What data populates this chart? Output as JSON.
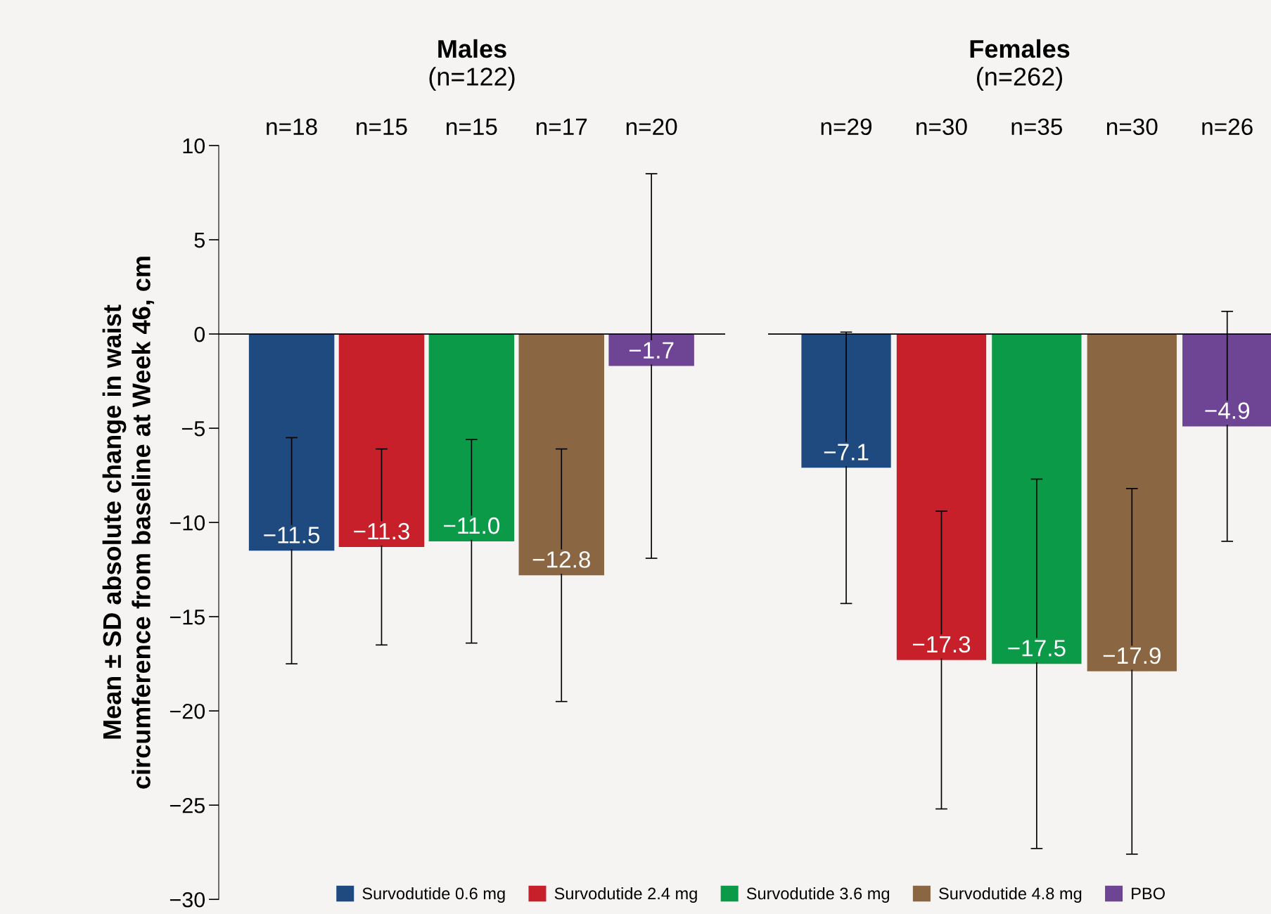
{
  "chart_data": [
    {
      "type": "bar",
      "title": "Males",
      "subtitle": "(n=122)",
      "ylabel": "Mean ± SD absolute change in waist\ncircumference from baseline at Week 46, cm",
      "categories": [
        "n=18",
        "n=15",
        "n=15",
        "n=17",
        "n=20"
      ],
      "ylim": [
        -30,
        10
      ],
      "yticks": [
        {
          "value": 10,
          "label": "10"
        },
        {
          "value": 5,
          "label": "5"
        },
        {
          "value": 0,
          "label": "0"
        },
        {
          "value": -5,
          "label": "−5"
        },
        {
          "value": -10,
          "label": "−10"
        },
        {
          "value": -15,
          "label": "−15"
        },
        {
          "value": -20,
          "label": "−20"
        },
        {
          "value": -25,
          "label": "−25"
        },
        {
          "value": -30,
          "label": "−30"
        }
      ],
      "legend": "bottom",
      "tick_labels": "y",
      "series": [
        {
          "name": "Survodutide 0.6 mg",
          "color": "#1f4a80",
          "values": [
            -11.5,
            null,
            null,
            null,
            null
          ],
          "errors": [
            [
              -17.5,
              -5.5
            ],
            null,
            null,
            null,
            null
          ],
          "value_labels": [
            "−11.5",
            null,
            null,
            null,
            null
          ]
        },
        {
          "name": "Survodutide 2.4 mg",
          "color": "#c8202b",
          "values": [
            null,
            -11.3,
            null,
            null,
            null
          ],
          "errors": [
            null,
            [
              -16.5,
              -6.1
            ],
            null,
            null,
            null
          ],
          "value_labels": [
            null,
            "−11.3",
            null,
            null,
            null
          ]
        },
        {
          "name": "Survodutide 3.6 mg",
          "color": "#0a9a48",
          "values": [
            null,
            null,
            -11.0,
            null,
            null
          ],
          "errors": [
            null,
            null,
            [
              -16.4,
              -5.6
            ],
            null,
            null
          ],
          "value_labels": [
            null,
            null,
            "−11.0",
            null,
            null
          ]
        },
        {
          "name": "Survodutide 4.8 mg",
          "color": "#8a6642",
          "values": [
            null,
            null,
            null,
            -12.8,
            null
          ],
          "errors": [
            null,
            null,
            null,
            [
              -19.5,
              -6.1
            ],
            null
          ],
          "value_labels": [
            null,
            null,
            null,
            "−12.8",
            null
          ]
        },
        {
          "name": "PBO",
          "color": "#6e4495",
          "values": [
            null,
            null,
            null,
            null,
            -1.7
          ],
          "errors": [
            null,
            null,
            null,
            null,
            [
              -11.9,
              8.5
            ]
          ],
          "value_labels": [
            null,
            null,
            null,
            null,
            "−1.7"
          ]
        }
      ]
    },
    {
      "type": "bar",
      "title": "Females",
      "subtitle": "(n=262)",
      "categories": [
        "n=29",
        "n=30",
        "n=35",
        "n=30",
        "n=26"
      ],
      "ylim": [
        -30,
        10
      ],
      "tick_labels": false,
      "series": [
        {
          "color": "#1f4a80",
          "values": [
            -7.1,
            null,
            null,
            null,
            null
          ],
          "errors": [
            [
              -14.3,
              0.1
            ],
            null,
            null,
            null,
            null
          ],
          "value_labels": [
            "−7.1",
            null,
            null,
            null,
            null
          ]
        },
        {
          "color": "#c8202b",
          "values": [
            null,
            -17.3,
            null,
            null,
            null
          ],
          "errors": [
            null,
            [
              -25.2,
              -9.4
            ],
            null,
            null,
            null
          ],
          "value_labels": [
            null,
            "−17.3",
            null,
            null,
            null
          ]
        },
        {
          "color": "#0a9a48",
          "values": [
            null,
            null,
            -17.5,
            null,
            null
          ],
          "errors": [
            null,
            null,
            [
              -27.3,
              -7.7
            ],
            null,
            null
          ],
          "value_labels": [
            null,
            null,
            "−17.5",
            null,
            null
          ]
        },
        {
          "color": "#8a6642",
          "values": [
            null,
            null,
            null,
            -17.9,
            null
          ],
          "errors": [
            null,
            null,
            null,
            [
              -27.6,
              -8.2
            ],
            null
          ],
          "value_labels": [
            null,
            null,
            null,
            "−17.9",
            null
          ]
        },
        {
          "color": "#6e4495",
          "values": [
            null,
            null,
            null,
            null,
            -4.9
          ],
          "errors": [
            null,
            null,
            null,
            null,
            [
              -11.0,
              1.2
            ]
          ],
          "value_labels": [
            null,
            null,
            null,
            null,
            "−4.9"
          ]
        }
      ]
    }
  ]
}
